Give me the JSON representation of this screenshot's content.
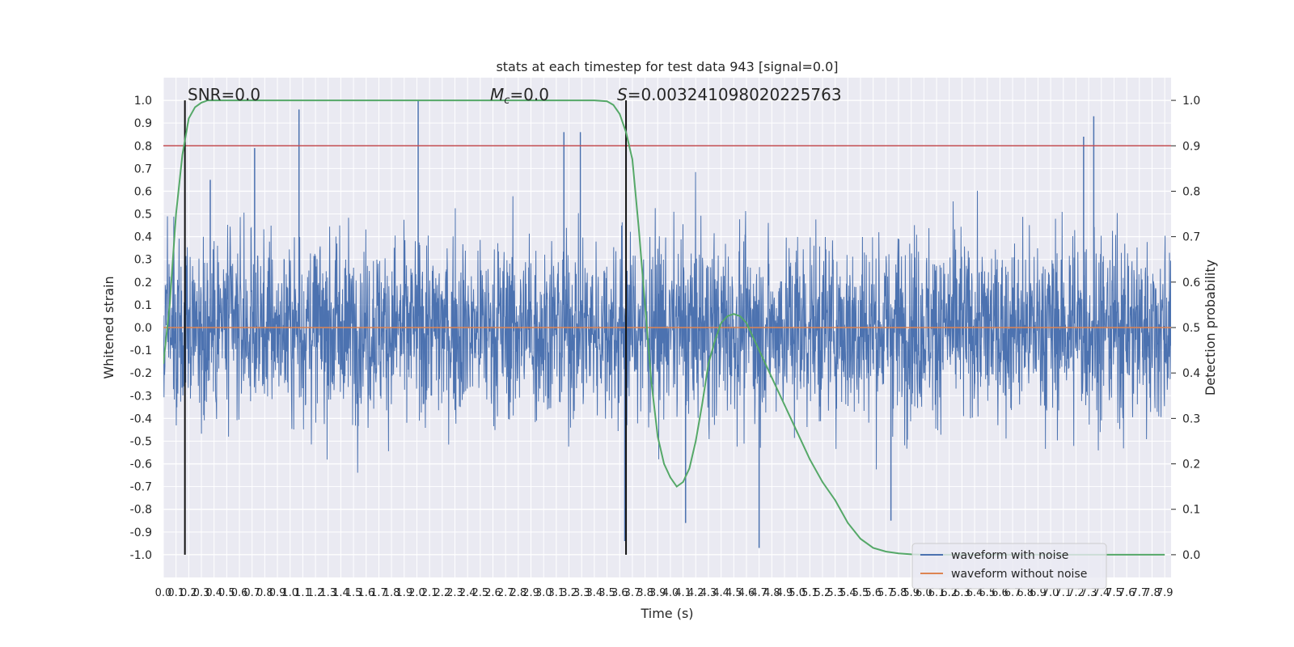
{
  "chart_data": {
    "type": "line",
    "title": "stats at each timestep for test data 943 [signal=0.0]",
    "xlabel": "Time (s)",
    "ylabel_left": "Whitened strain",
    "ylabel_right": "Detection probability",
    "xlim": [
      0.0,
      7.95
    ],
    "ylim_left": [
      -1.1,
      1.1
    ],
    "ylim_right": [
      -0.05,
      1.05
    ],
    "x_ticks": [
      0.0,
      0.1,
      0.2,
      0.3,
      0.4,
      0.5,
      0.6,
      0.7,
      0.8,
      0.9,
      1.0,
      1.1,
      1.2,
      1.3,
      1.4,
      1.5,
      1.6,
      1.7,
      1.8,
      1.9,
      2.0,
      2.1,
      2.2,
      2.3,
      2.4,
      2.5,
      2.6,
      2.7,
      2.8,
      2.9,
      3.0,
      3.1,
      3.2,
      3.3,
      3.4,
      3.5,
      3.6,
      3.7,
      3.8,
      3.9,
      4.0,
      4.1,
      4.2,
      4.3,
      4.4,
      4.5,
      4.6,
      4.7,
      4.8,
      4.9,
      5.0,
      5.1,
      5.2,
      5.3,
      5.4,
      5.5,
      5.6,
      5.7,
      5.8,
      5.9,
      6.0,
      6.1,
      6.2,
      6.3,
      6.4,
      6.5,
      6.6,
      6.7,
      6.8,
      6.9,
      7.0,
      7.1,
      7.2,
      7.3,
      7.4,
      7.5,
      7.6,
      7.7,
      7.8,
      7.9
    ],
    "y_ticks_left": [
      -1.0,
      -0.9,
      -0.8,
      -0.7,
      -0.6,
      -0.5,
      -0.4,
      -0.3,
      -0.2,
      -0.1,
      0.0,
      0.1,
      0.2,
      0.3,
      0.4,
      0.5,
      0.6,
      0.7,
      0.8,
      0.9,
      1.0
    ],
    "y_ticks_right": [
      0.0,
      0.1,
      0.2,
      0.3,
      0.4,
      0.5,
      0.6,
      0.7,
      0.8,
      0.9,
      1.0
    ],
    "grid": true,
    "legend_placement": "lower-right",
    "annotations": {
      "snr": "SNR=0.0",
      "mc": "=0.0",
      "mc_symbol": "M",
      "mc_sub": "c",
      "s": "=0.003241098020225763",
      "s_symbol": "S"
    },
    "vertical_markers_x": [
      0.17,
      3.65
    ],
    "threshold_right": 0.9,
    "series": [
      {
        "name": "waveform with noise",
        "color": "#4c72b0",
        "noise_sigma": 0.2,
        "spike_x": [
          0.37,
          0.72,
          1.07,
          2.01,
          3.16,
          3.29,
          3.64,
          4.12,
          4.7,
          5.74,
          7.26,
          7.34
        ],
        "spike_y": [
          0.65,
          0.79,
          0.96,
          1.0,
          0.86,
          0.86,
          -0.94,
          -0.86,
          -0.97,
          -0.85,
          0.84,
          0.93
        ]
      },
      {
        "name": "waveform without noise",
        "color": "#dd8452",
        "constant_y": 0.0
      },
      {
        "name": "detection probability",
        "color": "#55a868",
        "x": [
          0.0,
          0.05,
          0.1,
          0.15,
          0.2,
          0.25,
          0.3,
          0.35,
          0.4,
          0.5,
          0.6,
          1.0,
          2.0,
          3.0,
          3.4,
          3.5,
          3.55,
          3.6,
          3.65,
          3.7,
          3.75,
          3.8,
          3.85,
          3.9,
          3.95,
          4.0,
          4.05,
          4.1,
          4.15,
          4.2,
          4.25,
          4.3,
          4.35,
          4.4,
          4.45,
          4.5,
          4.55,
          4.6,
          4.65,
          4.7,
          4.8,
          4.9,
          5.0,
          5.1,
          5.2,
          5.3,
          5.4,
          5.5,
          5.6,
          5.7,
          5.8,
          5.9,
          6.0,
          6.5,
          7.0,
          7.5,
          7.9
        ],
        "y": [
          0.42,
          0.55,
          0.75,
          0.88,
          0.96,
          0.985,
          0.995,
          1.0,
          1.0,
          1.0,
          1.0,
          1.0,
          1.0,
          1.0,
          1.0,
          0.998,
          0.99,
          0.97,
          0.93,
          0.87,
          0.72,
          0.55,
          0.38,
          0.26,
          0.2,
          0.17,
          0.15,
          0.16,
          0.19,
          0.25,
          0.33,
          0.42,
          0.47,
          0.51,
          0.525,
          0.53,
          0.525,
          0.51,
          0.48,
          0.45,
          0.39,
          0.33,
          0.27,
          0.21,
          0.16,
          0.12,
          0.07,
          0.035,
          0.015,
          0.007,
          0.003,
          0.001,
          0.0,
          0.0,
          0.0,
          0.0,
          0.0
        ]
      }
    ]
  }
}
